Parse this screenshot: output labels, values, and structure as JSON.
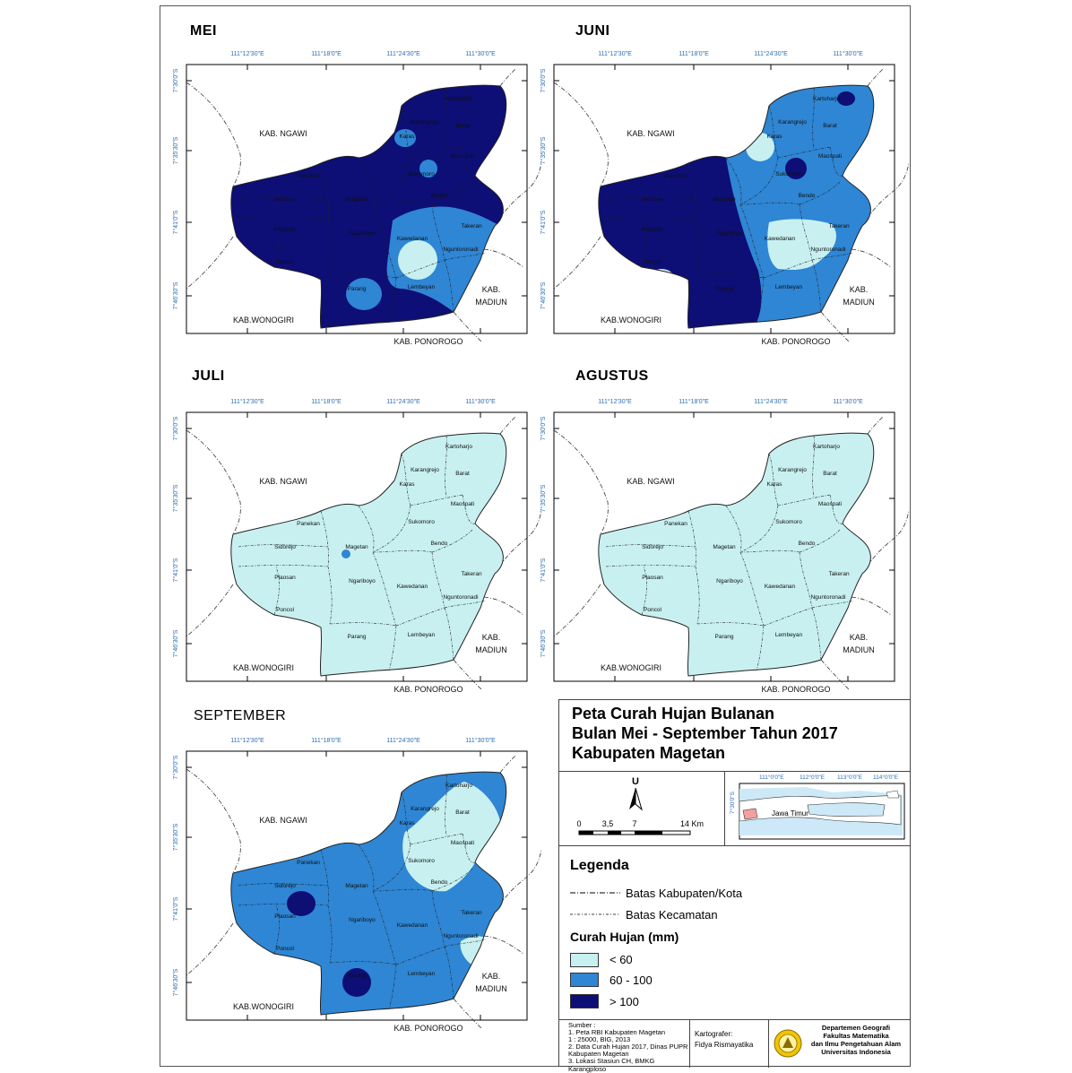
{
  "colors": {
    "low": "#c8f0f0",
    "mid": "#2e86d4",
    "high": "#0d0e76",
    "boundary": "#333333",
    "coord_text": "#2c6db5",
    "inset_land_highlight": "#f4a0a0",
    "inset_sea": "#cde9f7"
  },
  "coords": {
    "lon": [
      "111°12'30\"E",
      "111°18'0\"E",
      "111°24'30\"E",
      "111°30'0\"E"
    ],
    "lat": [
      "7°30'0\"S",
      "7°35'30\"S",
      "7°41'0\"S",
      "7°46'30\"S"
    ]
  },
  "region_labels": {
    "ngawi": "KAB. NGAWI",
    "wonogiri": "KAB.WONOGIRI",
    "ponorogo": "KAB. PONOROGO",
    "madiun_1": "KAB.",
    "madiun_2": "MADIUN"
  },
  "districts": {
    "kartoharjo": "Kartoharjo",
    "karangrejo": "Karangrejo",
    "barat": "Barat",
    "karas": "Karas",
    "maospati": "Maospati",
    "panekan": "Panekan",
    "sukomoro": "Sukomoro",
    "sidorejo": "Sidorejo",
    "magetan": "Magetan",
    "bendo": "Bendo",
    "plaosan": "Plaosan",
    "ngariboyo": "Ngariboyo",
    "kawedanan": "Kawedanan",
    "takeran": "Takeran",
    "nguntoronadi": "Nguntoronadi",
    "poncol": "Poncol",
    "parang": "Parang",
    "lembeyan": "Lembeyan"
  },
  "maps": [
    {
      "id": "mei",
      "title": "MEI",
      "rainfall": "mixed, dominant > 100"
    },
    {
      "id": "juni",
      "title": "JUNI",
      "rainfall": "mixed, west > 100, east 60 - 100"
    },
    {
      "id": "juli",
      "title": "JULI",
      "rainfall": "< 60"
    },
    {
      "id": "agustus",
      "title": "AGUSTUS",
      "rainfall": "< 60"
    },
    {
      "id": "september",
      "title": "SEPTEMBER",
      "rainfall": "dominant 60 - 100"
    }
  ],
  "panel": {
    "title": [
      "Peta Curah Hujan Bulanan",
      "Bulan Mei - September Tahun 2017",
      "Kabupaten Magetan"
    ],
    "north_label": "U",
    "scale": [
      "0",
      "3,5",
      "7",
      "14 Km"
    ],
    "inset": {
      "lon": [
        "111°0'0\"E",
        "112°0'0\"E",
        "113°0'0\"E",
        "114°0'0\"E"
      ],
      "lat": "7°30'0\"S",
      "label": "Jawa Timur"
    },
    "legend_title": "Legenda",
    "boundary_kab": "Batas Kabupaten/Kota",
    "boundary_kec": "Batas Kecamatan",
    "rain_title": "Curah Hujan (mm)",
    "classes": [
      "< 60",
      "60 - 100",
      "> 100"
    ],
    "sources": [
      "Sumber :",
      "1. Peta RBI Kabupaten Magetan",
      "1 : 25000, BIG, 2013",
      "2. Data Curah Hujan 2017, Dinas PUPR",
      "Kabupaten Magetan",
      "3. Lokasi Stasiun CH, BMKG Karangploso"
    ],
    "cartographer_label": "Kartografer:",
    "cartographer": "Fidya Rismayatika",
    "institution": [
      "Departemen Geografi",
      "Fakultas Matematika",
      "dan Ilmu Pengetahuan Alam",
      "Universitas Indonesia"
    ]
  }
}
